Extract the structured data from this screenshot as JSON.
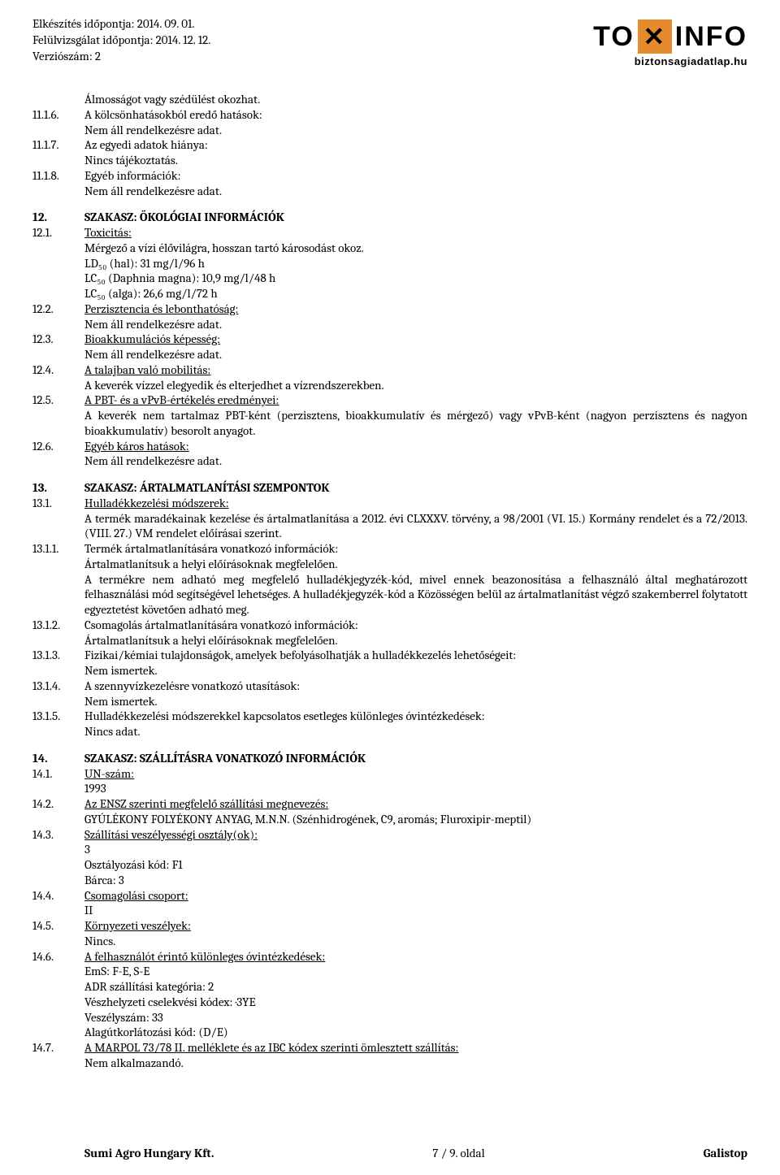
{
  "header": {
    "prep_date": "Elkészítés időpontja: 2014. 09. 01.",
    "review_date": "Felülvizsgálat időpontja: 2014. 12. 12.",
    "version": "Verziószám: 2",
    "logo_to": "TO",
    "logo_x": "✕",
    "logo_info": "INFO",
    "logo_sub": "biztonsagiadatlap.hu"
  },
  "s11": {
    "line1": "Álmosságot vagy szédülést okozhat.",
    "n_11_1_6": "11.1.6.",
    "t_11_1_6": "A kölcsönhatásokból eredő hatások:",
    "nar": "Nem áll rendelkezésre adat.",
    "n_11_1_7": "11.1.7.",
    "t_11_1_7": "Az egyedi adatok hiánya:",
    "nt": "Nincs tájékoztatás.",
    "n_11_1_8": "11.1.8.",
    "t_11_1_8": "Egyéb információk:"
  },
  "s12": {
    "n_12": "12.",
    "t_12": "SZAKASZ: ÖKOLÓGIAI INFORMÁCIÓK",
    "n_12_1": "12.1.",
    "t_12_1": "Toxicitás:",
    "tox_line": "Mérgező a vízi élővilágra, hosszan tartó károsodást okoz.",
    "ld50": "LD₅₀ (hal): 31 mg/l/96 h",
    "lc50_d": "LC₅₀ (Daphnia magna): 10,9 mg/l/48 h",
    "lc50_a": "LC₅₀ (alga): 26,6 mg/l/72 h",
    "n_12_2": "12.2.",
    "t_12_2": "Perzisztencia és lebonthatóság:",
    "n_12_3": "12.3.",
    "t_12_3": "Bioakkumulációs képesség:",
    "n_12_4": "12.4.",
    "t_12_4": "A talajban való mobilitás:",
    "mob": "A keverék vízzel elegyedik és elterjedhet a vízrendszerekben.",
    "n_12_5": "12.5.",
    "t_12_5": "A PBT- és a vPvB-értékelés eredményei:",
    "pbt": "A keverék nem tartalmaz PBT-ként (perzisztens, bioakkumulatív és mérgező) vagy vPvB-ként (nagyon perzisztens és nagyon bioakkumulatív) besorolt anyagot.",
    "n_12_6": "12.6.",
    "t_12_6": "Egyéb káros hatások:"
  },
  "s13": {
    "n_13": "13.",
    "t_13": "SZAKASZ: ÁRTALMATLANÍTÁSI SZEMPONTOK",
    "n_13_1": "13.1.",
    "t_13_1": "Hulladékkezelési módszerek:",
    "law": "A termék maradékainak kezelése és ártalmatlanítása a 2012. évi CLXXXV. törvény, a 98/2001 (VI. 15.) Kormány rendelet és a 72/2013. (VIII. 27.) VM rendelet előírásai szerint.",
    "n_13_1_1": "13.1.1.",
    "t_13_1_1": "Termék ártalmatlanítására vonatkozó információk:",
    "art1": "Ártalmatlanítsuk a helyi előírásoknak megfelelően.",
    "art2": "A termékre nem adható meg megfelelő hulladékjegyzék-kód, mivel ennek beazonosítása a felhasználó által meghatározott felhasználási mód segítségével lehetséges. A hulladékjegyzék-kód a Közösségen belül az ártalmatlanítást végző szakemberrel folytatott egyeztetést követően adható meg.",
    "n_13_1_2": "13.1.2.",
    "t_13_1_2": "Csomagolás ártalmatlanítására vonatkozó információk:",
    "n_13_1_3": "13.1.3.",
    "t_13_1_3": "Fizikai/kémiai tulajdonságok, amelyek befolyásolhatják a hulladékkezelés lehetőségeit:",
    "ni": "Nem ismertek.",
    "n_13_1_4": "13.1.4.",
    "t_13_1_4": "A szennyvízkezelésre vonatkozó utasítások:",
    "n_13_1_5": "13.1.5.",
    "t_13_1_5": "Hulladékkezelési módszerekkel kapcsolatos esetleges különleges óvintézkedések:",
    "na": "Nincs adat."
  },
  "s14": {
    "n_14": "14.",
    "t_14": "SZAKASZ: SZÁLLÍTÁSRA VONATKOZÓ INFORMÁCIÓK",
    "n_14_1": "14.1.",
    "t_14_1": "UN-szám:",
    "un": "1993",
    "n_14_2": "14.2.",
    "t_14_2": "Az ENSZ szerinti megfelelő szállítási megnevezés:",
    "name": "GYÚLÉKONY FOLYÉKONY ANYAG, M.N.N. (Szénhidrogének, C9, aromás; Fluroxipir-meptil)",
    "n_14_3": "14.3.",
    "t_14_3": "Szállítási veszélyességi osztály(ok):",
    "cls": "3",
    "clscode": "Osztályozási kód: F1",
    "barca": "Bárca: 3",
    "n_14_4": "14.4.",
    "t_14_4": "Csomagolási csoport:",
    "pg": "II",
    "n_14_5": "14.5.",
    "t_14_5": "Környezeti veszélyek:",
    "nincs": "Nincs.",
    "n_14_6": "14.6.",
    "t_14_6": "A felhasználót érintő különleges óvintézkedések:",
    "ems": "EmS: F-E, S-E",
    "adr": "ADR szállítási kategória: 2",
    "vesz": "Vészhelyzeti cselekvési kódex: ·3YE",
    "hazno": "Veszélyszám: 33",
    "tunnel": "Alagútkorlátozási kód: (D/E)",
    "n_14_7": "14.7.",
    "t_14_7": "A MARPOL 73/78 II. melléklete és az IBC kódex szerinti ömlesztett szállítás:",
    "nalkalmaz": "Nem alkalmazandó."
  },
  "footer": {
    "left": "Sumi Agro Hungary Kft.",
    "center": "7 / 9. oldal",
    "right": "Galistop"
  }
}
